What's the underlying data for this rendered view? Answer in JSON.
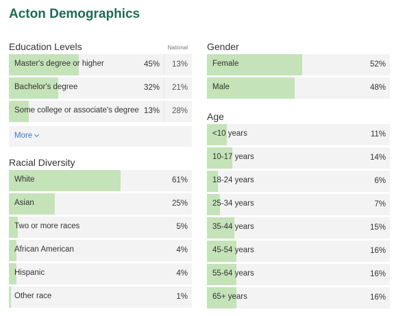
{
  "page": {
    "title": "Acton Demographics"
  },
  "education": {
    "title": "Education Levels",
    "national_header": "National",
    "rows": [
      {
        "label": "Master's degree or higher",
        "pct": "45%",
        "national": "13%",
        "value": 0.45
      },
      {
        "label": "Bachelor's degree",
        "pct": "32%",
        "national": "21%",
        "value": 0.32
      },
      {
        "label": "Some college or associate's degree",
        "pct": "13%",
        "national": "28%",
        "value": 0.13
      }
    ],
    "more_label": "More"
  },
  "racial": {
    "title": "Racial Diversity",
    "rows": [
      {
        "label": "White",
        "pct": "61%",
        "value": 0.61
      },
      {
        "label": "Asian",
        "pct": "25%",
        "value": 0.25
      },
      {
        "label": "Two or more races",
        "pct": "5%",
        "value": 0.05
      },
      {
        "label": "African American",
        "pct": "4%",
        "value": 0.04
      },
      {
        "label": "Hispanic",
        "pct": "4%",
        "value": 0.04
      },
      {
        "label": "Other race",
        "pct": "1%",
        "value": 0.01
      }
    ]
  },
  "gender": {
    "title": "Gender",
    "rows": [
      {
        "label": "Female",
        "pct": "52%",
        "value": 0.52
      },
      {
        "label": "Male",
        "pct": "48%",
        "value": 0.48
      }
    ]
  },
  "age": {
    "title": "Age",
    "rows": [
      {
        "label": "<10 years",
        "pct": "11%",
        "value": 0.11
      },
      {
        "label": "10-17 years",
        "pct": "14%",
        "value": 0.14
      },
      {
        "label": "18-24 years",
        "pct": "6%",
        "value": 0.06
      },
      {
        "label": "25-34 years",
        "pct": "7%",
        "value": 0.07
      },
      {
        "label": "35-44 years",
        "pct": "15%",
        "value": 0.15
      },
      {
        "label": "45-54 years",
        "pct": "16%",
        "value": 0.16
      },
      {
        "label": "55-64 years",
        "pct": "16%",
        "value": 0.16
      },
      {
        "label": "65+ years",
        "pct": "16%",
        "value": 0.16
      }
    ]
  },
  "colors": {
    "accent": "#1f6a54",
    "bar": "#c4e3b8",
    "row_bg": "#f3f3f3",
    "link": "#3a78c0"
  }
}
